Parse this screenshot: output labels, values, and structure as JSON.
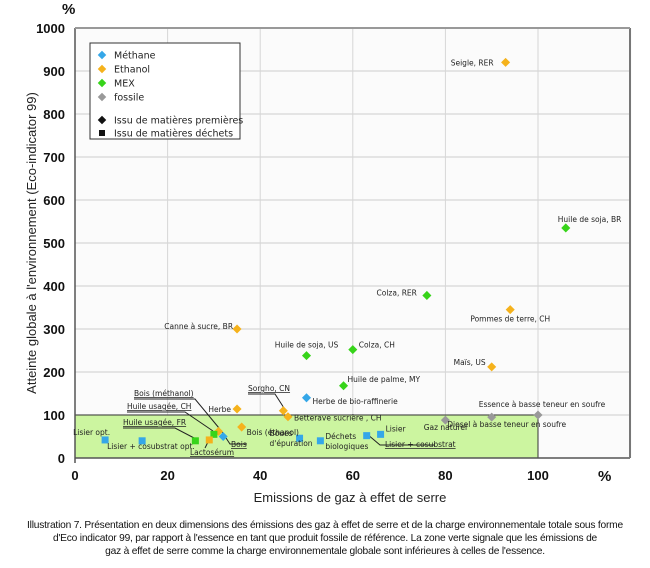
{
  "chart_data": {
    "type": "scatter",
    "title": "",
    "xlabel": "Emissions de gaz à effet de serre",
    "ylabel": "Atteinte globale à l'environnement  (Eco-indicator 99)",
    "x_unit": "%",
    "y_unit": "%",
    "xlim": [
      0,
      120
    ],
    "ylim": [
      0,
      1000
    ],
    "x_ticks": [
      "0",
      "20",
      "40",
      "60",
      "80",
      "100"
    ],
    "y_ticks": [
      "0",
      "100",
      "200",
      "300",
      "400",
      "500",
      "600",
      "700",
      "800",
      "900",
      "1000"
    ],
    "grid": true,
    "green_zone": {
      "x_max": 100,
      "y_max": 100,
      "color": "#ccf5a0"
    },
    "legend_position": "top-left",
    "legend": {
      "series": [
        {
          "name": "Méthane",
          "color": "#35a7e8"
        },
        {
          "name": "Ethanol",
          "color": "#f5b21c"
        },
        {
          "name": "MEX",
          "color": "#37d41a"
        },
        {
          "name": "fossile",
          "color": "#999999"
        }
      ],
      "shapes": [
        {
          "name": "Issu de matières premières",
          "shape": "diamond"
        },
        {
          "name": "Issu de matières déchets",
          "shape": "square"
        }
      ]
    },
    "points": [
      {
        "label": "Seigle, RER",
        "series": "Ethanol",
        "shape": "diamond",
        "x": 93,
        "y": 920,
        "anchor": "left"
      },
      {
        "label": "Huile de soja, BR",
        "series": "MEX",
        "shape": "diamond",
        "x": 106,
        "y": 535,
        "anchor": "above"
      },
      {
        "label": "Colza, RER",
        "series": "MEX",
        "shape": "diamond",
        "x": 76,
        "y": 378,
        "anchor": "left"
      },
      {
        "label": "Pommes de terre, CH",
        "series": "Ethanol",
        "shape": "diamond",
        "x": 94,
        "y": 345,
        "anchor": "below"
      },
      {
        "label": "Canne à sucre, BR",
        "series": "Ethanol",
        "shape": "diamond",
        "x": 35,
        "y": 300,
        "anchor": "left"
      },
      {
        "label": "Huile de soja, US",
        "series": "MEX",
        "shape": "diamond",
        "x": 50,
        "y": 238,
        "anchor": "above"
      },
      {
        "label": "Colza, CH",
        "series": "MEX",
        "shape": "diamond",
        "x": 60,
        "y": 252,
        "anchor": "right"
      },
      {
        "label": "Maïs, US",
        "series": "Ethanol",
        "shape": "diamond",
        "x": 90,
        "y": 212,
        "anchor": "left"
      },
      {
        "label": "Huile de palme, MY",
        "series": "MEX",
        "shape": "diamond",
        "x": 58,
        "y": 168,
        "anchor": "right"
      },
      {
        "label": "Herbe de bio-raffinerie",
        "series": "Méthane",
        "shape": "diamond",
        "x": 50,
        "y": 140,
        "anchor": "right"
      },
      {
        "label": "Herbe",
        "series": "Ethanol",
        "shape": "diamond",
        "x": 35,
        "y": 114,
        "anchor": "left"
      },
      {
        "label": "Sorgho, CN",
        "series": "Ethanol",
        "shape": "diamond",
        "x": 45,
        "y": 110,
        "anchor": "callout"
      },
      {
        "label": "Betterave sucrière , CH",
        "series": "Ethanol",
        "shape": "diamond",
        "x": 46,
        "y": 96,
        "anchor": "right"
      },
      {
        "label": "Bois (éthanol)",
        "series": "Ethanol",
        "shape": "diamond",
        "x": 36,
        "y": 72,
        "anchor": "right"
      },
      {
        "label": "Bois (méthanol)",
        "series": "Ethanol",
        "shape": "diamond",
        "x": 31,
        "y": 62,
        "anchor": "callout"
      },
      {
        "label": "Huile usagée, CH",
        "series": "MEX",
        "shape": "square",
        "x": 30,
        "y": 55,
        "anchor": "callout"
      },
      {
        "label": "Bois",
        "series": "Méthane",
        "shape": "diamond",
        "x": 32,
        "y": 50,
        "anchor": "callout"
      },
      {
        "label": "Huile usagée, FR",
        "series": "MEX",
        "shape": "square",
        "x": 26,
        "y": 40,
        "anchor": "callout"
      },
      {
        "label": "Lactosérum",
        "series": "Ethanol",
        "shape": "square",
        "x": 29,
        "y": 42,
        "anchor": "callout"
      },
      {
        "label": "Lisier opt.",
        "series": "Méthane",
        "shape": "square",
        "x": 6.5,
        "y": 42,
        "anchor": "above"
      },
      {
        "label": "Lisier + cosubstrat opt.",
        "series": "Méthane",
        "shape": "square",
        "x": 14.5,
        "y": 40,
        "anchor": "below"
      },
      {
        "label": "Boues d'épuration",
        "series": "Méthane",
        "shape": "square",
        "x": 48.5,
        "y": 46,
        "anchor": "left"
      },
      {
        "label": "Déchets biologiques",
        "series": "Méthane",
        "shape": "square",
        "x": 53,
        "y": 40,
        "anchor": "right"
      },
      {
        "label": "Lisier + cosubstrat",
        "series": "Méthane",
        "shape": "square",
        "x": 63,
        "y": 52,
        "anchor": "callout"
      },
      {
        "label": "Lisier",
        "series": "Méthane",
        "shape": "square",
        "x": 66,
        "y": 55,
        "anchor": "right"
      },
      {
        "label": "Gaz naturel",
        "series": "fossile",
        "shape": "diamond",
        "x": 80,
        "y": 88,
        "anchor": "below"
      },
      {
        "label": "Diesel à basse teneur en soufre",
        "series": "fossile",
        "shape": "diamond",
        "x": 90,
        "y": 95,
        "anchor": "below"
      },
      {
        "label": "Essence à basse teneur en soufre",
        "series": "fossile",
        "shape": "diamond",
        "x": 100,
        "y": 100,
        "anchor": "above"
      }
    ]
  },
  "caption": {
    "line1": "Illustration 7. Présentation en deux dimensions des émissions des gaz à effet de serre et de la charge environnementale totale sous forme",
    "line2": "d'Eco indicator 99, par rapport à l'essence en tant que produit fossile de référence. La zone verte signale que les émissions de",
    "line3": "gaz à effet de serre comme la charge environnementale globale sont inférieures à celles de l'essence."
  }
}
